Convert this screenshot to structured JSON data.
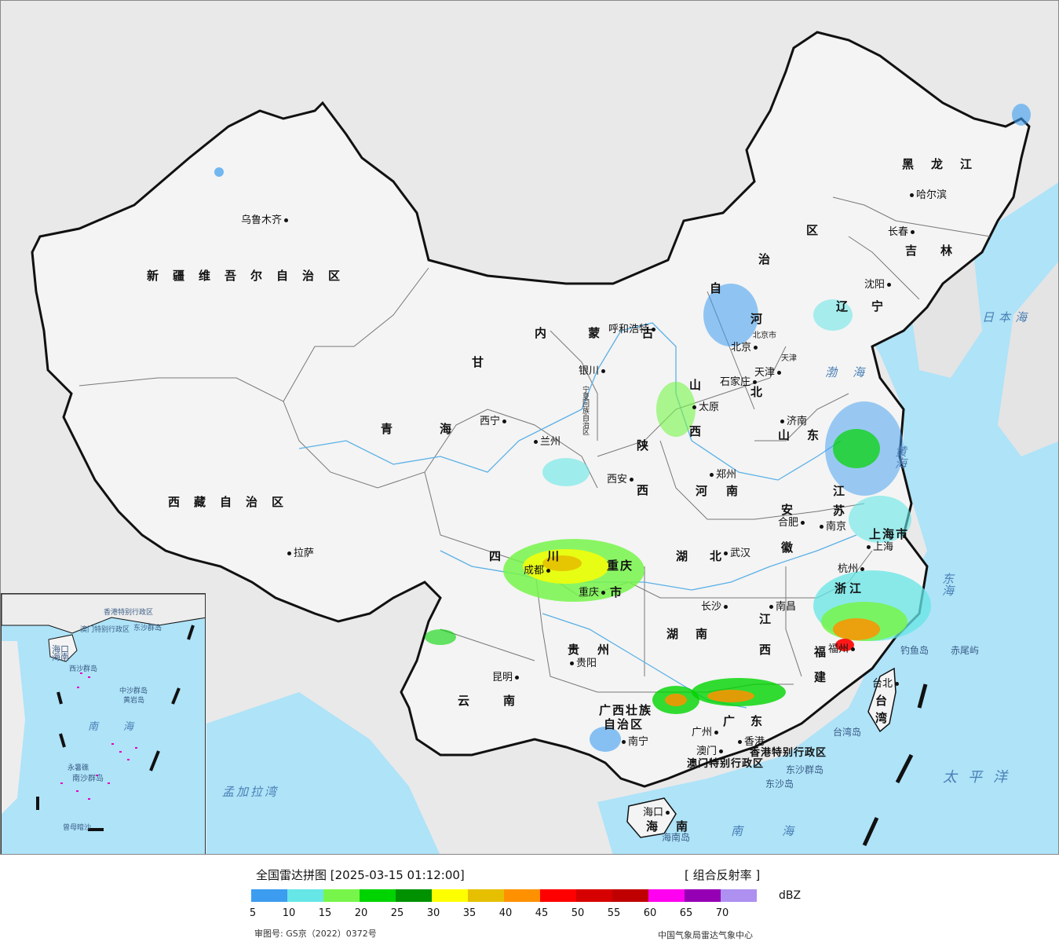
{
  "colors": {
    "ocean": "#aee3f8",
    "land_other": "#e9e9e9",
    "china_land": "#f2f2f2",
    "border": "#111111",
    "river": "#5ab0e6"
  },
  "map": {
    "provinces": [
      {
        "name": "新疆维吾尔自治区"
      },
      {
        "name": "西藏自治区"
      },
      {
        "name": "青海"
      },
      {
        "name": "甘"
      },
      {
        "name": "内 蒙 古"
      },
      {
        "name": "自"
      },
      {
        "name": "治"
      },
      {
        "name": "区"
      },
      {
        "name": "黑龙江"
      },
      {
        "name": "吉林"
      },
      {
        "name": "辽宁"
      },
      {
        "name": "河"
      },
      {
        "name": "北"
      },
      {
        "name": "山"
      },
      {
        "name": "西"
      },
      {
        "name": "陕"
      },
      {
        "name": "西"
      },
      {
        "name": "河南"
      },
      {
        "name": "山东"
      },
      {
        "name": "江"
      },
      {
        "name": "苏"
      },
      {
        "name": "安"
      },
      {
        "name": "徽"
      },
      {
        "name": "湖北"
      },
      {
        "name": "四"
      },
      {
        "name": "川"
      },
      {
        "name": "重庆"
      },
      {
        "name": "市"
      },
      {
        "name": "湖"
      },
      {
        "name": "南"
      },
      {
        "name": "贵"
      },
      {
        "name": "州"
      },
      {
        "name": "云"
      },
      {
        "name": "南"
      },
      {
        "name": "广西壮族"
      },
      {
        "name": "自治区"
      },
      {
        "name": "广"
      },
      {
        "name": "东"
      },
      {
        "name": "江"
      },
      {
        "name": "西"
      },
      {
        "name": "浙江"
      },
      {
        "name": "福"
      },
      {
        "name": "建"
      },
      {
        "name": "台"
      },
      {
        "name": "湾"
      },
      {
        "name": "海"
      },
      {
        "name": "南"
      },
      {
        "name": "上海市"
      },
      {
        "name": "北京市"
      },
      {
        "name": "天津"
      },
      {
        "name": "宁夏回族自治区"
      },
      {
        "name": "香港特别行政区"
      },
      {
        "name": "澳门特别行政区"
      }
    ],
    "cities": [
      {
        "name": "乌鲁木齐"
      },
      {
        "name": "拉萨"
      },
      {
        "name": "西宁"
      },
      {
        "name": "兰州"
      },
      {
        "name": "银川"
      },
      {
        "name": "呼和浩特"
      },
      {
        "name": "北京"
      },
      {
        "name": "天津"
      },
      {
        "name": "石家庄"
      },
      {
        "name": "太原"
      },
      {
        "name": "济南"
      },
      {
        "name": "郑州"
      },
      {
        "name": "西安"
      },
      {
        "name": "合肥"
      },
      {
        "name": "南京"
      },
      {
        "name": "上海"
      },
      {
        "name": "杭州"
      },
      {
        "name": "武汉"
      },
      {
        "name": "成都"
      },
      {
        "name": "重庆"
      },
      {
        "name": "长沙"
      },
      {
        "name": "南昌"
      },
      {
        "name": "福州"
      },
      {
        "name": "贵阳"
      },
      {
        "name": "昆明"
      },
      {
        "name": "南宁"
      },
      {
        "name": "广州"
      },
      {
        "name": "澳门"
      },
      {
        "name": "香港"
      },
      {
        "name": "海口"
      },
      {
        "name": "台北"
      },
      {
        "name": "沈阳"
      },
      {
        "name": "长春"
      },
      {
        "name": "哈尔滨"
      }
    ],
    "seas": [
      {
        "name": "日本海"
      },
      {
        "name": "渤海"
      },
      {
        "name": "黄海"
      },
      {
        "name": "东海"
      },
      {
        "name": "太平洋"
      },
      {
        "name": "南海"
      },
      {
        "name": "孟加拉湾"
      }
    ],
    "islands": [
      {
        "name": "钓鱼岛"
      },
      {
        "name": "赤尾屿"
      },
      {
        "name": "台湾岛"
      },
      {
        "name": "东沙群岛"
      },
      {
        "name": "东沙岛"
      },
      {
        "name": "海南岛"
      }
    ]
  },
  "inset": {
    "labels": [
      {
        "name": "海口"
      },
      {
        "name": "海南"
      },
      {
        "name": "南"
      },
      {
        "name": "海"
      },
      {
        "name": "西沙群岛"
      },
      {
        "name": "中沙群岛"
      },
      {
        "name": "黄岩岛"
      },
      {
        "name": "南沙群岛"
      },
      {
        "name": "曾母暗沙"
      },
      {
        "name": "永暑礁"
      },
      {
        "name": "东沙群岛"
      },
      {
        "name": "香港特别行政区"
      },
      {
        "name": "澳门特别行政区"
      }
    ]
  },
  "legend": {
    "title": "全国雷达拼图 [2025-03-15 01:12:00]",
    "product": "[ 组合反射率 ]",
    "unit": "dBZ",
    "colors": [
      "#3c9cf0",
      "#66e6e6",
      "#77f54a",
      "#00d400",
      "#009100",
      "#ffff00",
      "#e6c000",
      "#ff9100",
      "#ff0000",
      "#d60000",
      "#c00000",
      "#ff00f0",
      "#9600b4",
      "#ad90f0"
    ],
    "ticks": [
      "5",
      "10",
      "15",
      "20",
      "25",
      "30",
      "35",
      "40",
      "45",
      "50",
      "55",
      "60",
      "65",
      "70"
    ],
    "approval_number": "审图号: GS京（2022）0372号",
    "producer": "中国气象局雷达气象中心"
  }
}
